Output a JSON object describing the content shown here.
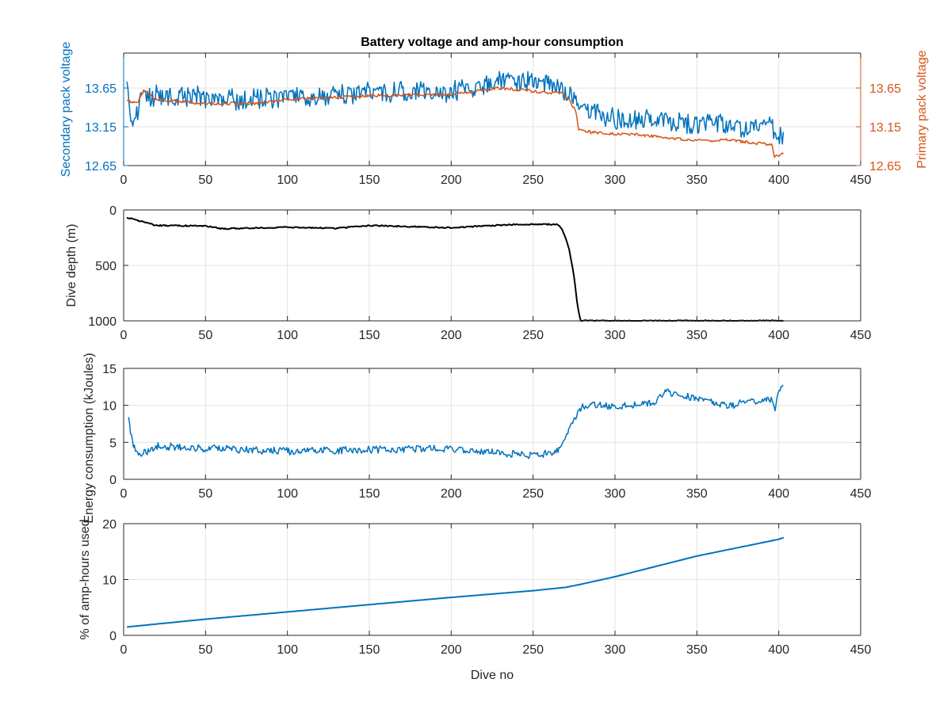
{
  "figure": {
    "title": "Battery voltage and amp-hour consumption",
    "colors": {
      "blue": "#0072BD",
      "orange": "#D95319",
      "black": "#000000",
      "axis": "#262626",
      "grid": "#e3e3e3"
    }
  },
  "chart_data": [
    {
      "type": "line",
      "title": "Battery voltage and amp-hour consumption",
      "xlabel": "",
      "ylabel": "Secondary pack voltage",
      "ylabel_right": "Primary pack voltage",
      "xlim": [
        0,
        450
      ],
      "ylim": [
        12.65,
        14.1
      ],
      "xticks": [
        0,
        50,
        100,
        150,
        200,
        250,
        300,
        350,
        400,
        450
      ],
      "yticks": [
        12.65,
        13.15,
        13.65
      ],
      "yticks_right": [
        12.65,
        13.15,
        13.65
      ],
      "grid": true,
      "series": [
        {
          "name": "Secondary pack voltage",
          "axis": "left",
          "color": "#0072BD",
          "noise": 0.14,
          "x": [
            2,
            5,
            12,
            20,
            40,
            60,
            80,
            100,
            120,
            150,
            180,
            200,
            220,
            240,
            255,
            265,
            270,
            274,
            278,
            290,
            300,
            320,
            340,
            360,
            380,
            395,
            400,
            403
          ],
          "y": [
            13.6,
            13.2,
            13.55,
            13.55,
            13.55,
            13.5,
            13.5,
            13.55,
            13.55,
            13.6,
            13.6,
            13.6,
            13.7,
            13.75,
            13.7,
            13.65,
            13.6,
            13.5,
            13.35,
            13.3,
            13.25,
            13.25,
            13.2,
            13.2,
            13.15,
            13.15,
            13.05,
            12.95
          ]
        },
        {
          "name": "Primary pack voltage",
          "axis": "right",
          "color": "#D95319",
          "noise": 0.02,
          "x": [
            2,
            8,
            12,
            20,
            50,
            80,
            100,
            150,
            200,
            230,
            255,
            268,
            272,
            276,
            278,
            290,
            310,
            330,
            350,
            370,
            390,
            396,
            397,
            400,
            403
          ],
          "y": [
            13.5,
            13.45,
            13.62,
            13.5,
            13.45,
            13.45,
            13.5,
            13.55,
            13.57,
            13.65,
            13.6,
            13.58,
            13.5,
            13.35,
            13.1,
            13.07,
            13.05,
            13.02,
            12.97,
            12.98,
            12.93,
            12.92,
            12.76,
            12.78,
            12.8
          ]
        }
      ]
    },
    {
      "type": "line",
      "xlabel": "",
      "ylabel": "Dive depth (m)",
      "xlim": [
        0,
        450
      ],
      "ylim": [
        0,
        1000
      ],
      "y_reversed": true,
      "xticks": [
        0,
        50,
        100,
        150,
        200,
        250,
        300,
        350,
        400,
        450
      ],
      "yticks": [
        0,
        500,
        1000
      ],
      "grid": true,
      "series": [
        {
          "color": "#000000",
          "noise": 6,
          "x": [
            2,
            10,
            20,
            50,
            60,
            100,
            130,
            150,
            200,
            240,
            265,
            268,
            272,
            275,
            277,
            279,
            290,
            350,
            400,
            403
          ],
          "y": [
            70,
            100,
            140,
            145,
            170,
            155,
            165,
            140,
            160,
            130,
            130,
            180,
            350,
            600,
            850,
            1000,
            1000,
            1000,
            1000,
            1000
          ]
        }
      ]
    },
    {
      "type": "line",
      "xlabel": "",
      "ylabel": "Energy consumption (kJoules)",
      "xlim": [
        0,
        450
      ],
      "ylim": [
        0,
        15
      ],
      "xticks": [
        0,
        50,
        100,
        150,
        200,
        250,
        300,
        350,
        400,
        450
      ],
      "yticks": [
        0,
        5,
        10,
        15
      ],
      "grid": true,
      "series": [
        {
          "color": "#0072BD",
          "noise": 0.5,
          "x": [
            3,
            6,
            10,
            15,
            20,
            50,
            100,
            150,
            200,
            250,
            265,
            270,
            275,
            280,
            290,
            300,
            325,
            330,
            350,
            370,
            380,
            395,
            398,
            400,
            403
          ],
          "y": [
            8,
            4.5,
            3.5,
            3.8,
            4.5,
            4.2,
            3.8,
            4,
            4.2,
            3.2,
            3.8,
            6,
            8,
            10,
            10,
            9.8,
            10.5,
            11.8,
            11,
            9.8,
            10.5,
            10.8,
            9.5,
            12.5,
            12.3
          ]
        }
      ]
    },
    {
      "type": "line",
      "xlabel": "Dive no",
      "ylabel": "% of amp-hours used",
      "xlim": [
        0,
        450
      ],
      "ylim": [
        0,
        20
      ],
      "xticks": [
        0,
        50,
        100,
        150,
        200,
        250,
        300,
        350,
        400,
        450
      ],
      "yticks": [
        0,
        10,
        20
      ],
      "grid": true,
      "series": [
        {
          "color": "#0072BD",
          "noise": 0,
          "x": [
            2,
            50,
            100,
            150,
            200,
            250,
            270,
            280,
            300,
            350,
            400,
            403
          ],
          "y": [
            1.5,
            2.9,
            4.2,
            5.5,
            6.8,
            8,
            8.6,
            9.2,
            10.5,
            14.2,
            17.2,
            17.5
          ]
        }
      ]
    }
  ]
}
